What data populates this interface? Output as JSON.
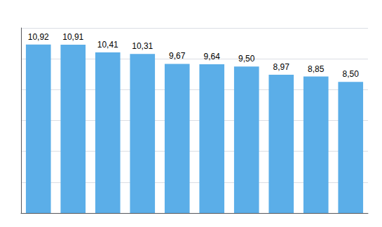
{
  "chart_data": {
    "type": "bar",
    "categories": [
      null,
      null,
      null,
      null,
      null,
      null,
      null,
      null,
      null,
      null
    ],
    "values": [
      10.92,
      10.91,
      10.41,
      10.31,
      9.67,
      9.64,
      9.5,
      8.97,
      8.85,
      8.5
    ],
    "value_labels": [
      "10,92",
      "10,91",
      "10,41",
      "10,31",
      "9,67",
      "9,64",
      "9,50",
      "8,97",
      "8,85",
      "8,50"
    ],
    "data_labels": true,
    "color": "#5BAEE8",
    "ylim": [
      0,
      12
    ],
    "yticks": [
      0,
      2,
      4,
      6,
      8,
      10,
      12
    ],
    "grid": true,
    "tick_labels": false
  }
}
